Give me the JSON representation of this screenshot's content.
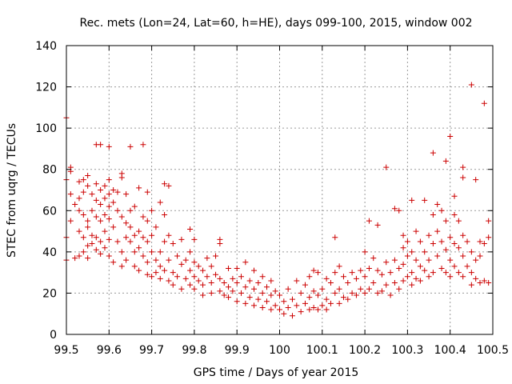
{
  "chart_data": {
    "type": "scatter",
    "title": "Rec. mets (Lon=24, Lat=60, h=HE), days 099-100, 2015, window 002",
    "xlabel": "GPS time / Days of year 2015",
    "ylabel": "STEC from uqrg / TECUs",
    "xlim": [
      99.5,
      100.5
    ],
    "ylim": [
      0,
      140
    ],
    "xticks": [
      "99.5",
      "99.6",
      "99.7",
      "99.8",
      "99.9",
      "100",
      "100.1",
      "100.2",
      "100.3",
      "100.4",
      "100.5"
    ],
    "yticks": [
      "0",
      "20",
      "40",
      "60",
      "80",
      "100",
      "120",
      "140"
    ],
    "grid": true,
    "marker": "plus",
    "series": [
      {
        "color": "#cc0000",
        "points": [
          [
            99.5,
            105
          ],
          [
            99.5,
            75
          ],
          [
            99.5,
            47
          ],
          [
            99.5,
            36
          ],
          [
            99.51,
            68
          ],
          [
            99.51,
            79
          ],
          [
            99.51,
            81
          ],
          [
            99.51,
            55
          ],
          [
            99.52,
            63
          ],
          [
            99.52,
            37
          ],
          [
            99.53,
            74
          ],
          [
            99.53,
            66
          ],
          [
            99.53,
            60
          ],
          [
            99.53,
            38
          ],
          [
            99.53,
            50
          ],
          [
            99.54,
            75
          ],
          [
            99.54,
            69
          ],
          [
            99.54,
            58
          ],
          [
            99.54,
            47
          ],
          [
            99.54,
            40
          ],
          [
            99.55,
            77
          ],
          [
            99.55,
            72
          ],
          [
            99.55,
            55
          ],
          [
            99.55,
            52
          ],
          [
            99.55,
            43
          ],
          [
            99.55,
            37
          ],
          [
            99.56,
            68
          ],
          [
            99.56,
            60
          ],
          [
            99.56,
            48
          ],
          [
            99.56,
            44
          ],
          [
            99.57,
            92
          ],
          [
            99.57,
            73
          ],
          [
            99.57,
            65
          ],
          [
            99.57,
            57
          ],
          [
            99.57,
            47
          ],
          [
            99.57,
            41
          ],
          [
            99.58,
            92
          ],
          [
            99.58,
            70
          ],
          [
            99.58,
            63
          ],
          [
            99.58,
            55
          ],
          [
            99.58,
            45
          ],
          [
            99.58,
            39
          ],
          [
            99.59,
            72
          ],
          [
            99.59,
            66
          ],
          [
            99.59,
            58
          ],
          [
            99.59,
            50
          ],
          [
            99.59,
            42
          ],
          [
            99.6,
            91
          ],
          [
            99.6,
            75
          ],
          [
            99.6,
            68
          ],
          [
            99.6,
            62
          ],
          [
            99.6,
            56
          ],
          [
            99.6,
            46
          ],
          [
            99.6,
            38
          ],
          [
            99.61,
            70
          ],
          [
            99.61,
            64
          ],
          [
            99.61,
            52
          ],
          [
            99.61,
            35
          ],
          [
            99.62,
            69
          ],
          [
            99.62,
            60
          ],
          [
            99.62,
            45
          ],
          [
            99.63,
            78
          ],
          [
            99.63,
            76
          ],
          [
            99.63,
            57
          ],
          [
            99.63,
            40
          ],
          [
            99.63,
            33
          ],
          [
            99.64,
            68
          ],
          [
            99.64,
            54
          ],
          [
            99.64,
            47
          ],
          [
            99.64,
            36
          ],
          [
            99.65,
            91
          ],
          [
            99.65,
            60
          ],
          [
            99.65,
            52
          ],
          [
            99.65,
            45
          ],
          [
            99.66,
            62
          ],
          [
            99.66,
            48
          ],
          [
            99.66,
            40
          ],
          [
            99.66,
            33
          ],
          [
            99.67,
            71
          ],
          [
            99.67,
            50
          ],
          [
            99.67,
            42
          ],
          [
            99.67,
            31
          ],
          [
            99.68,
            92
          ],
          [
            99.68,
            57
          ],
          [
            99.68,
            47
          ],
          [
            99.68,
            38
          ],
          [
            99.69,
            69
          ],
          [
            99.69,
            55
          ],
          [
            99.69,
            45
          ],
          [
            99.69,
            35
          ],
          [
            99.69,
            29
          ],
          [
            99.7,
            60
          ],
          [
            99.7,
            48
          ],
          [
            99.7,
            40
          ],
          [
            99.7,
            28
          ],
          [
            99.71,
            52
          ],
          [
            99.71,
            36
          ],
          [
            99.71,
            30
          ],
          [
            99.72,
            64
          ],
          [
            99.72,
            40
          ],
          [
            99.72,
            33
          ],
          [
            99.72,
            27
          ],
          [
            99.73,
            73
          ],
          [
            99.73,
            58
          ],
          [
            99.73,
            45
          ],
          [
            99.73,
            31
          ],
          [
            99.74,
            72
          ],
          [
            99.74,
            48
          ],
          [
            99.74,
            36
          ],
          [
            99.74,
            26
          ],
          [
            99.75,
            44
          ],
          [
            99.75,
            30
          ],
          [
            99.75,
            24
          ],
          [
            99.76,
            38
          ],
          [
            99.76,
            28
          ],
          [
            99.77,
            46
          ],
          [
            99.77,
            34
          ],
          [
            99.77,
            22
          ],
          [
            99.78,
            36
          ],
          [
            99.78,
            27
          ],
          [
            99.79,
            51
          ],
          [
            99.79,
            40
          ],
          [
            99.79,
            31
          ],
          [
            99.79,
            24
          ],
          [
            99.8,
            46
          ],
          [
            99.8,
            35
          ],
          [
            99.8,
            28
          ],
          [
            99.8,
            22
          ],
          [
            99.81,
            33
          ],
          [
            99.81,
            26
          ],
          [
            99.82,
            31
          ],
          [
            99.82,
            24
          ],
          [
            99.82,
            19
          ],
          [
            99.83,
            37
          ],
          [
            99.83,
            28
          ],
          [
            99.84,
            33
          ],
          [
            99.84,
            25
          ],
          [
            99.84,
            20
          ],
          [
            99.85,
            38
          ],
          [
            99.85,
            29
          ],
          [
            99.86,
            46
          ],
          [
            99.86,
            44
          ],
          [
            99.86,
            27
          ],
          [
            99.86,
            21
          ],
          [
            99.87,
            25
          ],
          [
            99.87,
            19
          ],
          [
            99.88,
            32
          ],
          [
            99.88,
            23
          ],
          [
            99.88,
            18
          ],
          [
            99.89,
            27
          ],
          [
            99.89,
            21
          ],
          [
            99.9,
            32
          ],
          [
            99.9,
            25
          ],
          [
            99.9,
            16
          ],
          [
            99.91,
            28
          ],
          [
            99.91,
            20
          ],
          [
            99.92,
            35
          ],
          [
            99.92,
            23
          ],
          [
            99.92,
            15
          ],
          [
            99.93,
            26
          ],
          [
            99.93,
            18
          ],
          [
            99.94,
            31
          ],
          [
            99.94,
            22
          ],
          [
            99.94,
            14
          ],
          [
            99.95,
            25
          ],
          [
            99.95,
            17
          ],
          [
            99.96,
            28
          ],
          [
            99.96,
            20
          ],
          [
            99.96,
            13
          ],
          [
            99.97,
            23
          ],
          [
            99.97,
            16
          ],
          [
            99.98,
            26
          ],
          [
            99.98,
            19
          ],
          [
            99.98,
            12
          ],
          [
            99.99,
            21
          ],
          [
            99.99,
            14
          ],
          [
            100.0,
            19
          ],
          [
            100.0,
            12
          ],
          [
            100.01,
            16
          ],
          [
            100.01,
            10
          ],
          [
            100.02,
            22
          ],
          [
            100.02,
            13
          ],
          [
            100.03,
            17
          ],
          [
            100.03,
            9
          ],
          [
            100.04,
            26
          ],
          [
            100.04,
            14
          ],
          [
            100.05,
            20
          ],
          [
            100.05,
            11
          ],
          [
            100.06,
            24
          ],
          [
            100.06,
            15
          ],
          [
            100.07,
            28
          ],
          [
            100.07,
            18
          ],
          [
            100.07,
            12
          ],
          [
            100.08,
            31
          ],
          [
            100.08,
            21
          ],
          [
            100.08,
            13
          ],
          [
            100.09,
            30
          ],
          [
            100.09,
            19
          ],
          [
            100.09,
            12
          ],
          [
            100.1,
            22
          ],
          [
            100.1,
            14
          ],
          [
            100.11,
            27
          ],
          [
            100.11,
            17
          ],
          [
            100.11,
            12
          ],
          [
            100.12,
            25
          ],
          [
            100.12,
            15
          ],
          [
            100.13,
            47
          ],
          [
            100.13,
            30
          ],
          [
            100.13,
            20
          ],
          [
            100.14,
            33
          ],
          [
            100.14,
            22
          ],
          [
            100.14,
            15
          ],
          [
            100.15,
            28
          ],
          [
            100.15,
            18
          ],
          [
            100.16,
            25
          ],
          [
            100.16,
            17
          ],
          [
            100.17,
            30
          ],
          [
            100.17,
            20
          ],
          [
            100.18,
            27
          ],
          [
            100.18,
            19
          ],
          [
            100.19,
            31
          ],
          [
            100.19,
            22
          ],
          [
            100.2,
            40
          ],
          [
            100.2,
            28
          ],
          [
            100.2,
            20
          ],
          [
            100.21,
            55
          ],
          [
            100.21,
            32
          ],
          [
            100.21,
            22
          ],
          [
            100.22,
            37
          ],
          [
            100.22,
            25
          ],
          [
            100.23,
            53
          ],
          [
            100.23,
            31
          ],
          [
            100.23,
            20
          ],
          [
            100.24,
            29
          ],
          [
            100.24,
            21
          ],
          [
            100.25,
            81
          ],
          [
            100.25,
            35
          ],
          [
            100.25,
            24
          ],
          [
            100.26,
            30
          ],
          [
            100.26,
            19
          ],
          [
            100.27,
            61
          ],
          [
            100.27,
            36
          ],
          [
            100.27,
            25
          ],
          [
            100.28,
            60
          ],
          [
            100.28,
            32
          ],
          [
            100.28,
            22
          ],
          [
            100.29,
            48
          ],
          [
            100.29,
            42
          ],
          [
            100.29,
            34
          ],
          [
            100.29,
            26
          ],
          [
            100.3,
            45
          ],
          [
            100.3,
            38
          ],
          [
            100.3,
            28
          ],
          [
            100.31,
            65
          ],
          [
            100.31,
            40
          ],
          [
            100.31,
            30
          ],
          [
            100.31,
            24
          ],
          [
            100.32,
            50
          ],
          [
            100.32,
            36
          ],
          [
            100.32,
            27
          ],
          [
            100.33,
            45
          ],
          [
            100.33,
            33
          ],
          [
            100.33,
            26
          ],
          [
            100.34,
            65
          ],
          [
            100.34,
            40
          ],
          [
            100.34,
            31
          ],
          [
            100.35,
            48
          ],
          [
            100.35,
            36
          ],
          [
            100.35,
            28
          ],
          [
            100.36,
            88
          ],
          [
            100.36,
            58
          ],
          [
            100.36,
            44
          ],
          [
            100.36,
            30
          ],
          [
            100.37,
            63
          ],
          [
            100.37,
            50
          ],
          [
            100.37,
            38
          ],
          [
            100.38,
            60
          ],
          [
            100.38,
            45
          ],
          [
            100.38,
            32
          ],
          [
            100.39,
            84
          ],
          [
            100.39,
            55
          ],
          [
            100.39,
            41
          ],
          [
            100.39,
            30
          ],
          [
            100.4,
            96
          ],
          [
            100.4,
            47
          ],
          [
            100.4,
            36
          ],
          [
            100.4,
            28
          ],
          [
            100.41,
            67
          ],
          [
            100.41,
            58
          ],
          [
            100.41,
            44
          ],
          [
            100.41,
            33
          ],
          [
            100.42,
            55
          ],
          [
            100.42,
            42
          ],
          [
            100.42,
            30
          ],
          [
            100.43,
            81
          ],
          [
            100.43,
            76
          ],
          [
            100.43,
            48
          ],
          [
            100.43,
            38
          ],
          [
            100.43,
            28
          ],
          [
            100.44,
            45
          ],
          [
            100.44,
            33
          ],
          [
            100.45,
            121
          ],
          [
            100.45,
            40
          ],
          [
            100.45,
            30
          ],
          [
            100.45,
            24
          ],
          [
            100.46,
            75
          ],
          [
            100.46,
            36
          ],
          [
            100.46,
            27
          ],
          [
            100.47,
            45
          ],
          [
            100.47,
            38
          ],
          [
            100.47,
            25
          ],
          [
            100.48,
            112
          ],
          [
            100.48,
            44
          ],
          [
            100.48,
            26
          ],
          [
            100.49,
            55
          ],
          [
            100.49,
            47
          ],
          [
            100.49,
            25
          ]
        ]
      }
    ]
  }
}
